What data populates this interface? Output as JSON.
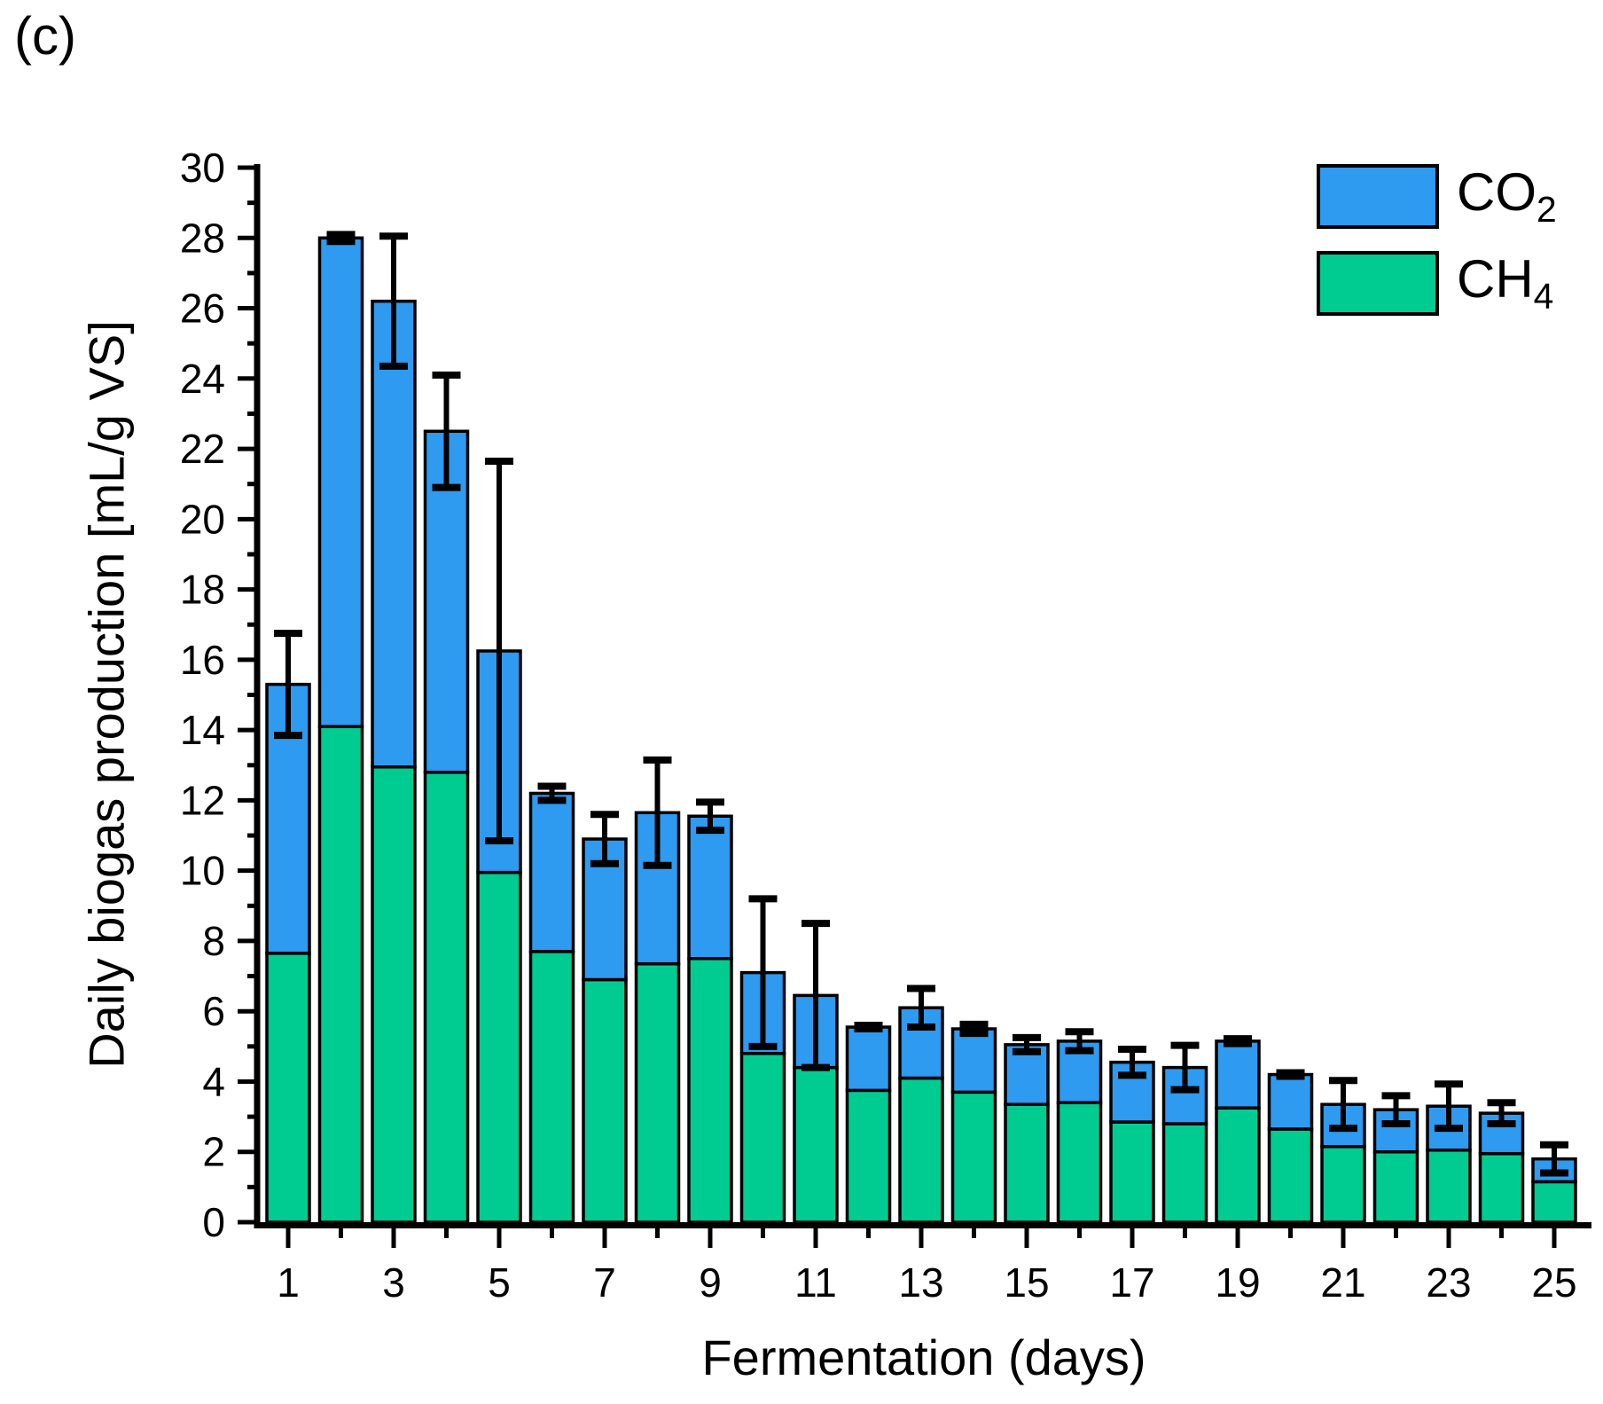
{
  "figure_label": "(c)",
  "axes": {
    "x_title": "Fermentation (days)",
    "y_title": "Daily biogas production [mL/g VS]"
  },
  "legend": {
    "position": "top-right",
    "items": [
      {
        "base": "CO",
        "sub": "2",
        "name": "CO2",
        "color": "#2E9AF0"
      },
      {
        "base": "CH",
        "sub": "4",
        "name": "CH4",
        "color": "#00CC92"
      }
    ]
  },
  "chart_data": {
    "type": "bar",
    "stacked": true,
    "title": "(c)",
    "xlabel": "Fermentation (days)",
    "ylabel": "Daily biogas production [mL/g VS]",
    "x": [
      1,
      2,
      3,
      4,
      5,
      6,
      7,
      8,
      9,
      10,
      11,
      12,
      13,
      14,
      15,
      16,
      17,
      18,
      19,
      20,
      21,
      22,
      23,
      24,
      25
    ],
    "x_tick_labels": [
      1,
      3,
      5,
      7,
      9,
      11,
      13,
      15,
      17,
      19,
      21,
      23,
      25
    ],
    "ylim": [
      0,
      30
    ],
    "ytick_major_step": 2,
    "ytick_minor_step": 1,
    "grid": false,
    "bar_outline_color": "#000000",
    "series": [
      {
        "name": "CH4",
        "color": "#00CC92",
        "values": [
          7.65,
          14.1,
          12.95,
          12.8,
          9.95,
          7.7,
          6.9,
          7.35,
          7.5,
          4.8,
          4.4,
          3.75,
          4.1,
          3.7,
          3.35,
          3.4,
          2.85,
          2.8,
          3.25,
          2.65,
          2.15,
          2.0,
          2.05,
          1.95,
          1.15
        ]
      },
      {
        "name": "CO2",
        "color": "#2E9AF0",
        "values": [
          7.65,
          13.9,
          13.25,
          9.7,
          6.3,
          4.5,
          4.0,
          4.3,
          4.05,
          2.3,
          2.05,
          1.8,
          2.0,
          1.8,
          1.7,
          1.75,
          1.7,
          1.6,
          1.9,
          1.55,
          1.2,
          1.2,
          1.25,
          1.15,
          0.65
        ]
      }
    ],
    "totals": [
      15.3,
      28.0,
      26.2,
      22.5,
      16.25,
      12.2,
      10.9,
      11.65,
      11.55,
      7.1,
      6.45,
      5.55,
      6.1,
      5.5,
      5.05,
      5.15,
      4.55,
      4.4,
      5.15,
      4.2,
      3.35,
      3.2,
      3.3,
      3.1,
      1.8
    ],
    "error_bars": {
      "applies_to": "total",
      "plus_minus": [
        1.45,
        0.1,
        1.85,
        1.6,
        5.4,
        0.2,
        0.7,
        1.5,
        0.4,
        2.1,
        2.05,
        0.05,
        0.55,
        0.13,
        0.2,
        0.27,
        0.37,
        0.63,
        0.07,
        0.05,
        0.68,
        0.4,
        0.63,
        0.3,
        0.4
      ]
    }
  }
}
